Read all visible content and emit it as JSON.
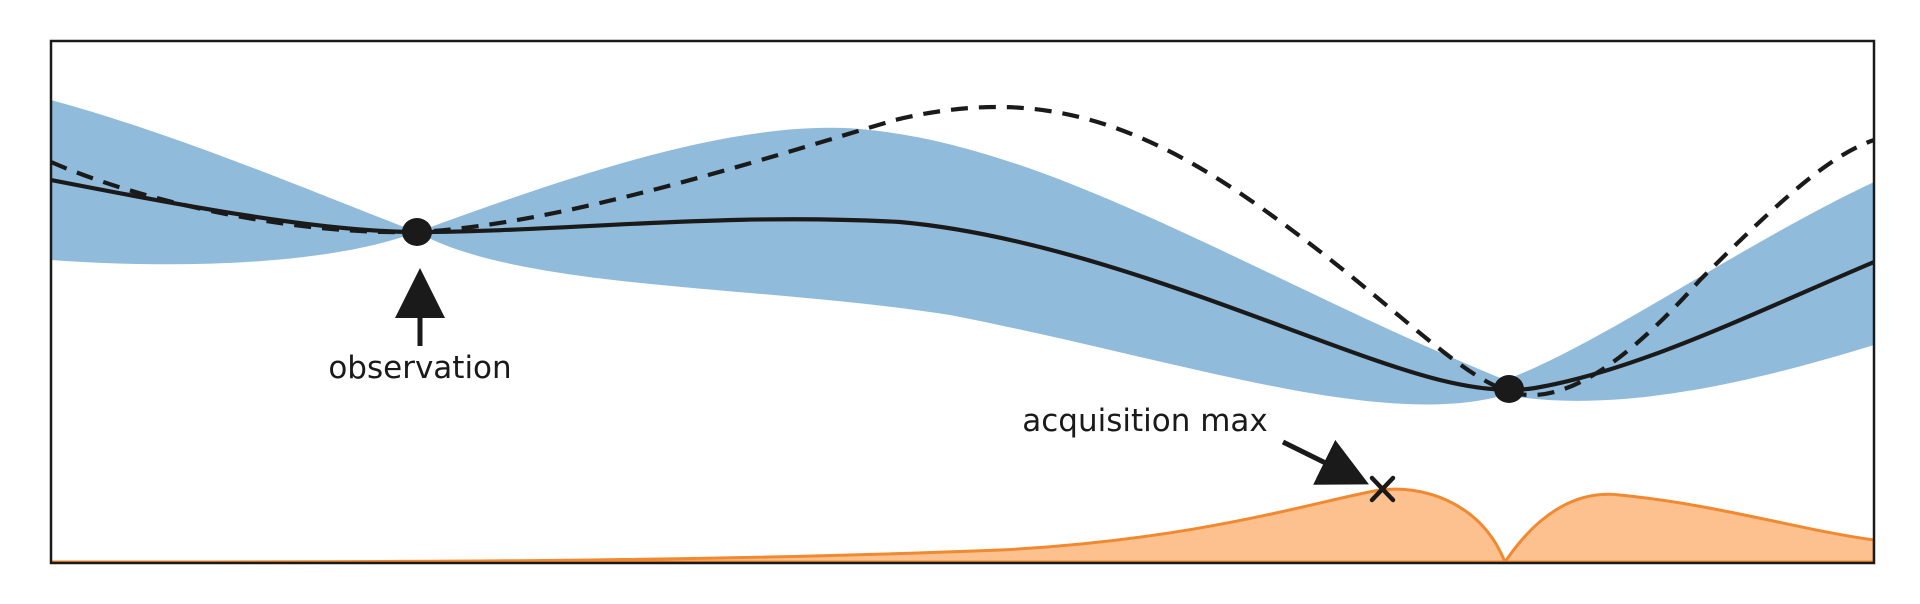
{
  "annotations": {
    "observation": "observation",
    "acquisition_max": "acquisition max"
  },
  "colors": {
    "uncertainty_band": "#90bbdb",
    "acquisition_fill": "#fdc08f",
    "acquisition_stroke": "#f0892f",
    "line": "#1a1a1a"
  },
  "chart_data": {
    "type": "line",
    "xlim": [
      0,
      1
    ],
    "grid": false,
    "observations": [
      {
        "x": 0.2,
        "y": 0.0
      },
      {
        "x": 0.8,
        "y": -0.43
      }
    ],
    "acquisition_max": {
      "x": 0.73,
      "a": 0.93
    }
  }
}
